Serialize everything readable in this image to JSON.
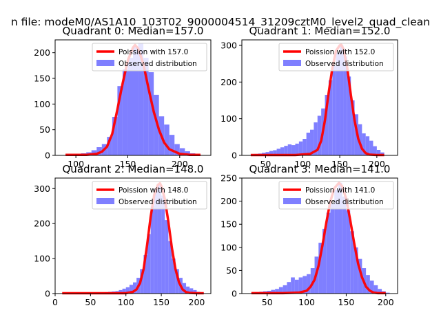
{
  "figure_title": "n file: modeM0/AS1A10_103T02_9000004514_31209cztM0_level2_quad_clean",
  "colors": {
    "histogram": "#7f7fff",
    "poisson_line": "#ff0000",
    "legend_border": "#cccccc"
  },
  "chart_data": [
    {
      "type": "bar+line",
      "title": "Quadrant 0: Median=157.0",
      "median": 157.0,
      "xlim": [
        80,
        230
      ],
      "ylim": [
        0,
        225
      ],
      "xticks": [
        100,
        150,
        200
      ],
      "yticks": [
        0,
        50,
        100,
        150,
        200
      ],
      "legend": {
        "line": "Poission with 157.0",
        "bars": "Observed distribution",
        "position": "top-right"
      },
      "hist_bin_edges": [
        90,
        95,
        100,
        105,
        110,
        115,
        120,
        125,
        130,
        135,
        140,
        145,
        150,
        155,
        160,
        165,
        170,
        175,
        180,
        185,
        190,
        195,
        200,
        205,
        210,
        215,
        220
      ],
      "hist_counts": [
        2,
        2,
        3,
        4,
        6,
        10,
        16,
        22,
        36,
        75,
        135,
        168,
        190,
        212,
        218,
        190,
        162,
        118,
        76,
        60,
        40,
        22,
        14,
        8,
        4,
        2
      ],
      "poisson_x": [
        90,
        100,
        110,
        120,
        125,
        130,
        135,
        140,
        145,
        150,
        155,
        157,
        160,
        165,
        170,
        175,
        180,
        185,
        190,
        200,
        210,
        220
      ],
      "poisson_y": [
        1,
        1,
        1,
        3,
        7,
        17,
        42,
        90,
        140,
        185,
        210,
        215,
        208,
        178,
        130,
        85,
        50,
        25,
        12,
        3,
        1,
        1
      ]
    },
    {
      "type": "bar+line",
      "title": "Quadrant 1: Median=152.0",
      "median": 152.0,
      "xlim": [
        18,
        228
      ],
      "ylim": [
        0,
        315
      ],
      "xticks": [
        50,
        100,
        150,
        200
      ],
      "yticks": [
        0,
        100,
        200,
        300
      ],
      "legend": {
        "line": "Poission with 152.0",
        "bars": "Observed distribution",
        "position": "top-right"
      },
      "hist_bin_edges": [
        30,
        35,
        40,
        45,
        50,
        55,
        60,
        65,
        70,
        75,
        80,
        85,
        90,
        95,
        100,
        105,
        110,
        115,
        120,
        125,
        130,
        135,
        140,
        145,
        150,
        155,
        160,
        165,
        170,
        175,
        180,
        185,
        190,
        195,
        200,
        205,
        210
      ],
      "hist_counts": [
        3,
        4,
        5,
        7,
        9,
        12,
        14,
        18,
        22,
        26,
        30,
        28,
        32,
        38,
        45,
        62,
        70,
        90,
        108,
        128,
        165,
        205,
        245,
        280,
        300,
        270,
        215,
        150,
        112,
        85,
        60,
        52,
        40,
        25,
        15,
        8
      ],
      "poisson_x": [
        30,
        60,
        90,
        110,
        120,
        125,
        130,
        135,
        140,
        145,
        150,
        152,
        155,
        160,
        165,
        170,
        175,
        180,
        185,
        190,
        200,
        210
      ],
      "poisson_y": [
        1,
        1,
        1,
        4,
        15,
        40,
        95,
        170,
        238,
        285,
        300,
        302,
        290,
        240,
        165,
        95,
        45,
        18,
        6,
        2,
        1,
        1
      ]
    },
    {
      "type": "bar+line",
      "title": "Quadrant 2: Median=148.0",
      "median": 148.0,
      "xlim": [
        0,
        220
      ],
      "ylim": [
        0,
        330
      ],
      "xticks": [
        0,
        50,
        100,
        150,
        200
      ],
      "yticks": [
        0,
        100,
        200,
        300
      ],
      "legend": {
        "line": "Poission with 148.0",
        "bars": "Observed distribution",
        "position": "top-right"
      },
      "hist_bin_edges": [
        10,
        15,
        20,
        25,
        30,
        35,
        40,
        45,
        50,
        55,
        60,
        65,
        70,
        75,
        80,
        85,
        90,
        95,
        100,
        105,
        110,
        115,
        120,
        125,
        130,
        135,
        140,
        145,
        150,
        155,
        160,
        165,
        170,
        175,
        180,
        185,
        190,
        195,
        200,
        205,
        210
      ],
      "hist_counts": [
        1,
        1,
        1,
        1,
        2,
        2,
        2,
        2,
        2,
        3,
        3,
        3,
        4,
        5,
        6,
        7,
        10,
        14,
        18,
        25,
        32,
        45,
        70,
        110,
        170,
        250,
        300,
        310,
        280,
        210,
        150,
        100,
        70,
        45,
        30,
        20,
        15,
        10,
        5,
        3
      ],
      "poisson_x": [
        10,
        60,
        100,
        110,
        115,
        120,
        125,
        130,
        135,
        140,
        145,
        148,
        150,
        155,
        160,
        165,
        170,
        175,
        180,
        185,
        190,
        200,
        210
      ],
      "poisson_y": [
        1,
        1,
        1,
        5,
        12,
        30,
        70,
        140,
        220,
        282,
        310,
        315,
        308,
        270,
        205,
        130,
        70,
        32,
        12,
        4,
        2,
        1,
        1
      ]
    },
    {
      "type": "bar+line",
      "title": "Quadrant 3: Median=141.0",
      "median": 141.0,
      "xlim": [
        18,
        215
      ],
      "ylim": [
        0,
        250
      ],
      "xticks": [
        50,
        100,
        150,
        200
      ],
      "yticks": [
        0,
        50,
        100,
        150,
        200,
        250
      ],
      "legend": {
        "line": "Poission with 141.0",
        "bars": "Observed distribution",
        "position": "top-right"
      },
      "hist_bin_edges": [
        30,
        35,
        40,
        45,
        50,
        55,
        60,
        65,
        70,
        75,
        80,
        85,
        90,
        95,
        100,
        105,
        110,
        115,
        120,
        125,
        130,
        135,
        140,
        145,
        150,
        155,
        160,
        165,
        170,
        175,
        180,
        185,
        190,
        195,
        200,
        205
      ],
      "hist_counts": [
        2,
        3,
        4,
        5,
        6,
        8,
        10,
        14,
        18,
        25,
        35,
        30,
        35,
        38,
        42,
        55,
        80,
        110,
        140,
        175,
        195,
        225,
        240,
        210,
        180,
        135,
        100,
        75,
        55,
        40,
        28,
        18,
        10,
        5,
        2
      ],
      "poisson_x": [
        30,
        70,
        90,
        100,
        105,
        110,
        115,
        120,
        125,
        130,
        135,
        141,
        145,
        150,
        155,
        160,
        165,
        170,
        175,
        180,
        185,
        190,
        200
      ],
      "poisson_y": [
        1,
        1,
        2,
        6,
        15,
        30,
        60,
        105,
        155,
        200,
        228,
        240,
        232,
        205,
        160,
        110,
        65,
        35,
        15,
        6,
        2,
        1,
        1
      ]
    }
  ]
}
